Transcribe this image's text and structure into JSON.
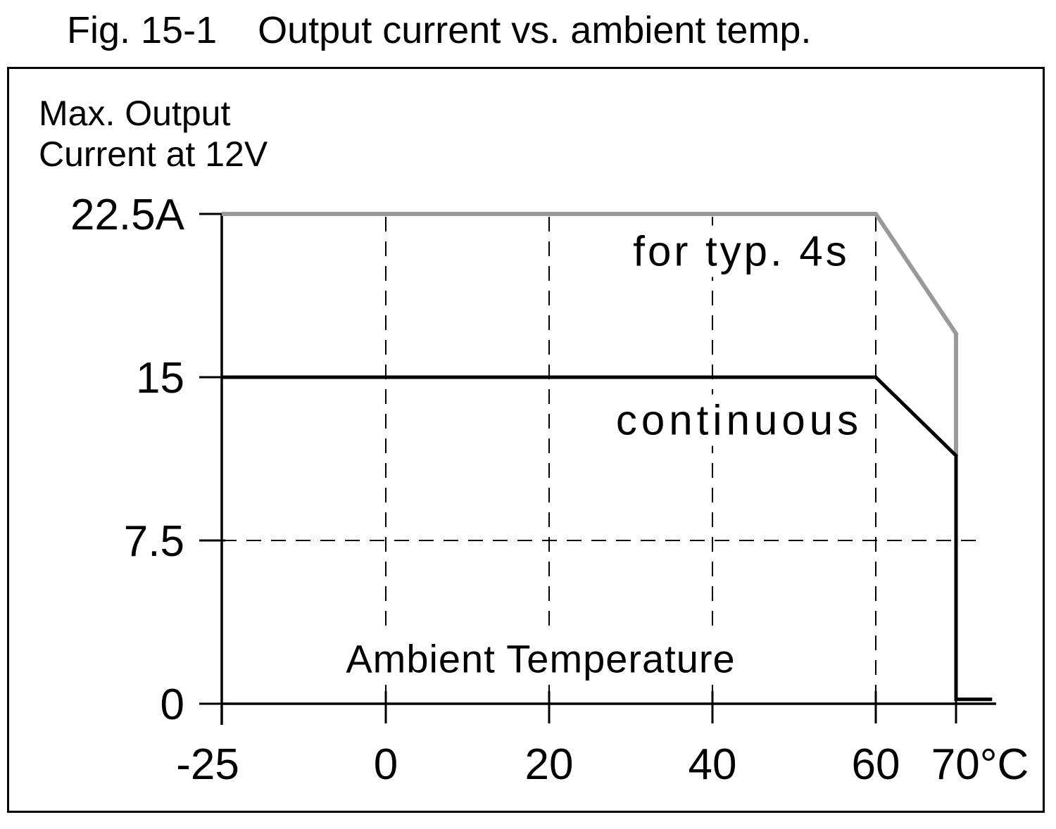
{
  "header": {
    "figure_label": "Fig. 15-1",
    "title": "Output current vs. ambient temp."
  },
  "axis_titles": {
    "y_line1": "Max. Output",
    "y_line2": "Current at 12V",
    "x": "Ambient Temperature"
  },
  "series_labels": {
    "peak": "for typ. 4s",
    "continuous": "continuous"
  },
  "colors": {
    "peak_line": "#999999",
    "continuous_line": "#000000",
    "text": "#000000",
    "background": "#ffffff"
  },
  "chart_data": {
    "type": "line",
    "title": "Fig. 15-1  Output current vs. ambient temp.",
    "xlabel": "Ambient Temperature",
    "ylabel": "Max. Output Current at 12V",
    "x_unit": "°C",
    "y_unit": "A",
    "x_tick_values": [
      -25,
      0,
      20,
      40,
      60,
      70
    ],
    "x_tick_labels": [
      "-25",
      "0",
      "20",
      "40",
      "60",
      "70°C"
    ],
    "y_tick_values": [
      0,
      7.5,
      15,
      22.5
    ],
    "y_tick_labels": [
      "0",
      "7.5",
      "15",
      "22.5A"
    ],
    "xlim": [
      -25,
      75
    ],
    "ylim": [
      0,
      22.5
    ],
    "grid": {
      "style": "dashed",
      "vertical_dashed_at": [
        0,
        20,
        40,
        60
      ],
      "horizontal_dashed_at": [
        7.5
      ]
    },
    "legend_position": "inline labels next to lines",
    "series": [
      {
        "name": "for typ. 4s",
        "color": "#999999",
        "stroke_width": 6,
        "points": [
          [
            -25,
            22.5
          ],
          [
            60,
            22.5
          ],
          [
            70,
            17
          ],
          [
            70,
            11.4
          ]
        ]
      },
      {
        "name": "continuous",
        "color": "#000000",
        "stroke_width": 5,
        "points": [
          [
            -25,
            15
          ],
          [
            60,
            15
          ],
          [
            70,
            11.4
          ],
          [
            70,
            0.2
          ],
          [
            74.5,
            0.2
          ]
        ]
      }
    ]
  }
}
